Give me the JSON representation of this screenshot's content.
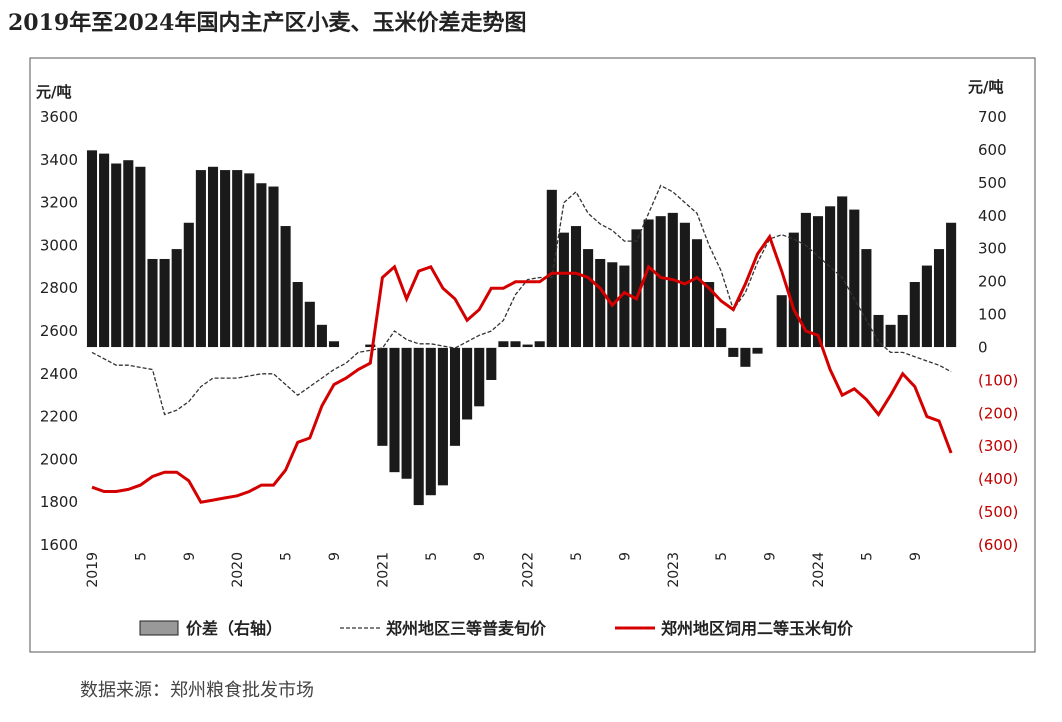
{
  "title": "2019年至2024年国内主产区小麦、玉米价差走势图",
  "source": "数据来源：郑州粮食批发市场",
  "chart_data": {
    "type": "combo",
    "y_unit": "元/吨",
    "y2_unit": "元/吨",
    "categories": [
      "2019",
      null,
      null,
      null,
      "5",
      null,
      null,
      null,
      "9",
      null,
      null,
      null,
      "2020",
      null,
      null,
      null,
      "5",
      null,
      null,
      null,
      "9",
      null,
      null,
      null,
      "2021",
      null,
      null,
      null,
      "5",
      null,
      null,
      null,
      "9",
      null,
      null,
      null,
      "2022",
      null,
      null,
      null,
      "5",
      null,
      null,
      null,
      "9",
      null,
      null,
      null,
      "2023",
      null,
      null,
      null,
      "5",
      null,
      null,
      null,
      "9",
      null,
      null,
      null,
      "2024",
      null,
      null,
      null,
      "5",
      null,
      null,
      null,
      "9",
      null,
      null,
      null
    ],
    "ylim": [
      1600,
      3600
    ],
    "yticks": [
      1600,
      1800,
      2000,
      2200,
      2400,
      2600,
      2800,
      3000,
      3200,
      3400,
      3600
    ],
    "y2lim": [
      -600,
      700
    ],
    "y2ticks": [
      {
        "value": -600,
        "label": "(600)"
      },
      {
        "value": -500,
        "label": "(500)"
      },
      {
        "value": -400,
        "label": "(400)"
      },
      {
        "value": -300,
        "label": "(300)"
      },
      {
        "value": -200,
        "label": "(200)"
      },
      {
        "value": -100,
        "label": "(100)"
      },
      0,
      100,
      200,
      300,
      400,
      500,
      600,
      700
    ],
    "y2_negative_label_color": "#c00000",
    "series": [
      {
        "name": "价差（右轴）",
        "type": "bar",
        "axis": "y2",
        "color": "#1a1a1a",
        "values": [
          600,
          590,
          560,
          570,
          550,
          270,
          270,
          300,
          380,
          540,
          550,
          540,
          540,
          530,
          500,
          490,
          370,
          200,
          140,
          70,
          20,
          0,
          0,
          10,
          -300,
          -380,
          -400,
          -480,
          -450,
          -420,
          -300,
          -220,
          -180,
          -100,
          20,
          20,
          10,
          20,
          480,
          350,
          370,
          300,
          270,
          260,
          250,
          360,
          390,
          400,
          410,
          380,
          330,
          200,
          60,
          -30,
          -60,
          -20,
          0,
          160,
          350,
          410,
          400,
          430,
          460,
          420,
          300,
          100,
          70,
          100,
          200,
          250,
          300,
          380
        ]
      },
      {
        "name": "郑州地区三等普麦旬价",
        "type": "line",
        "dashed": true,
        "color": "#333333",
        "values": [
          2500,
          2470,
          2440,
          2440,
          2430,
          2420,
          2210,
          2230,
          2270,
          2340,
          2380,
          2380,
          2380,
          2390,
          2400,
          2400,
          2350,
          2300,
          2340,
          2380,
          2420,
          2450,
          2500,
          2510,
          2520,
          2600,
          2560,
          2540,
          2540,
          2530,
          2520,
          2550,
          2580,
          2600,
          2650,
          2770,
          2840,
          2850,
          2850,
          3200,
          3250,
          3150,
          3100,
          3070,
          3020,
          3020,
          3150,
          3280,
          3250,
          3200,
          3150,
          3000,
          2880,
          2700,
          2780,
          2920,
          3030,
          3050,
          3030,
          3000,
          2950,
          2900,
          2850,
          2750,
          2650,
          2550,
          2500,
          2500,
          2480,
          2460,
          2440,
          2410
        ]
      },
      {
        "name": "郑州地区饲用二等玉米旬价",
        "type": "line",
        "dashed": false,
        "color": "#d40000",
        "values": [
          1870,
          1850,
          1850,
          1860,
          1880,
          1920,
          1940,
          1940,
          1900,
          1800,
          1810,
          1820,
          1830,
          1850,
          1880,
          1880,
          1950,
          2080,
          2100,
          2250,
          2350,
          2380,
          2420,
          2450,
          2850,
          2900,
          2750,
          2880,
          2900,
          2800,
          2750,
          2650,
          2700,
          2800,
          2800,
          2830,
          2830,
          2830,
          2870,
          2870,
          2870,
          2850,
          2800,
          2720,
          2780,
          2750,
          2900,
          2850,
          2840,
          2820,
          2850,
          2800,
          2740,
          2700,
          2820,
          2960,
          3040,
          2880,
          2700,
          2600,
          2580,
          2420,
          2300,
          2330,
          2280,
          2210,
          2300,
          2400,
          2340,
          2200,
          2180,
          2030
        ]
      }
    ]
  }
}
